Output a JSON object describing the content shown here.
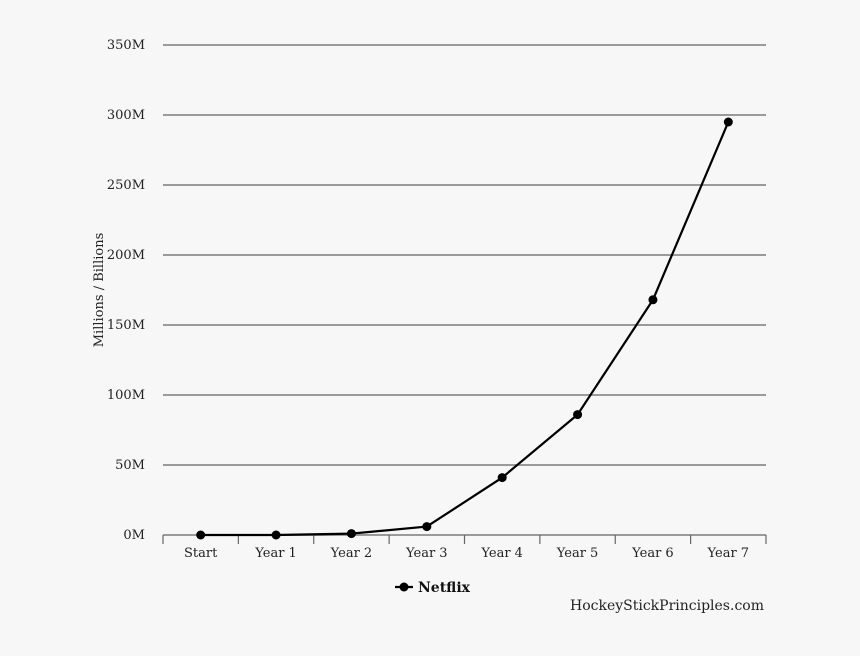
{
  "chart_data": {
    "type": "line",
    "categories": [
      "Start",
      "Year 1",
      "Year 2",
      "Year 3",
      "Year 4",
      "Year 5",
      "Year 6",
      "Year 7"
    ],
    "series": [
      {
        "name": "Netflix",
        "values": [
          0,
          0,
          1,
          6,
          41,
          86,
          168,
          295
        ],
        "color": "#000000"
      }
    ],
    "ylabel": "Millions / Billions",
    "xlabel": "",
    "ylim": [
      0,
      350
    ],
    "yticks": [
      0,
      50,
      100,
      150,
      200,
      250,
      300,
      350
    ],
    "ytick_labels": [
      "0M",
      "50M",
      "100M",
      "150M",
      "200M",
      "250M",
      "300M",
      "350M"
    ],
    "grid": true,
    "legend_position": "bottom-center"
  },
  "footer": {
    "source": "HockeyStickPrinciples.com"
  },
  "colors": {
    "background": "#f7f7f7",
    "grid": "#9a9a9a",
    "line": "#000000"
  }
}
